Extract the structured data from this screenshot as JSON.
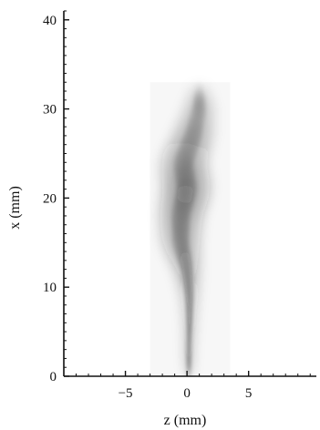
{
  "chart_data": {
    "type": "heatmap",
    "title": "",
    "xlabel": "z (mm)",
    "ylabel": "x (mm)",
    "xlim": [
      -10,
      10.5
    ],
    "ylim": [
      0,
      41
    ],
    "xticks": [
      -5,
      0,
      5
    ],
    "xtick_labels": [
      "−5",
      "0",
      "5"
    ],
    "yticks": [
      0,
      10,
      20,
      30,
      40
    ],
    "ytick_labels": [
      "0",
      "10",
      "20",
      "30",
      "40"
    ],
    "grid": false,
    "plume_image_extent": {
      "z": [
        -3,
        3.5
      ],
      "x": [
        0,
        33
      ]
    },
    "plume_profile": [
      {
        "x": 0.5,
        "center_z": 0.15,
        "half_width": 0.25,
        "intensity": 0.85
      },
      {
        "x": 3,
        "center_z": 0.15,
        "half_width": 0.4,
        "intensity": 0.8
      },
      {
        "x": 6,
        "center_z": 0.2,
        "half_width": 0.55,
        "intensity": 0.75
      },
      {
        "x": 9,
        "center_z": 0.2,
        "half_width": 0.75,
        "intensity": 0.7
      },
      {
        "x": 12,
        "center_z": 0.0,
        "half_width": 1.1,
        "intensity": 0.6
      },
      {
        "x": 15,
        "center_z": -0.5,
        "half_width": 1.6,
        "intensity": 0.5
      },
      {
        "x": 18,
        "center_z": -0.5,
        "half_width": 1.8,
        "intensity": 0.5
      },
      {
        "x": 21,
        "center_z": 0.0,
        "half_width": 2.0,
        "intensity": 0.55
      },
      {
        "x": 24,
        "center_z": -0.3,
        "half_width": 1.9,
        "intensity": 0.45
      },
      {
        "x": 27,
        "center_z": 0.5,
        "half_width": 1.7,
        "intensity": 0.4
      },
      {
        "x": 30,
        "center_z": 1.0,
        "half_width": 1.3,
        "intensity": 0.35
      },
      {
        "x": 32,
        "center_z": 1.0,
        "half_width": 0.8,
        "intensity": 0.2
      }
    ]
  }
}
